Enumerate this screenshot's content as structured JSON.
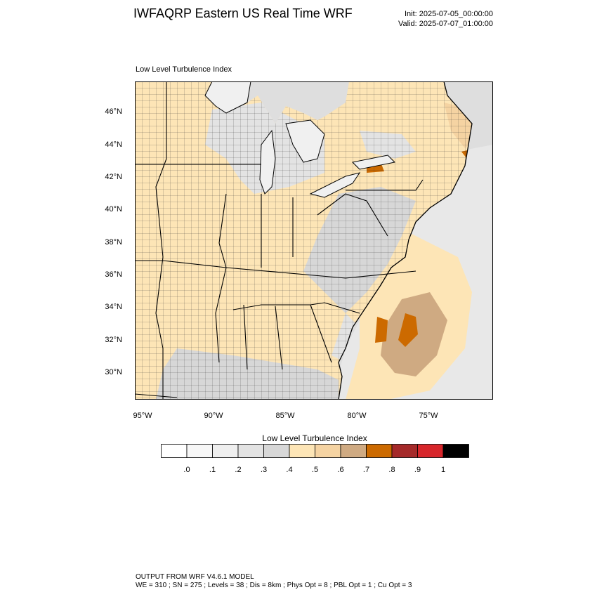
{
  "header": {
    "title": "IWFAQRP Eastern US Real Time WRF",
    "init": "Init: 2025-07-05_00:00:00",
    "valid": "Valid: 2025-07-07_01:00:00"
  },
  "panel": {
    "title": "Low Level Turbulence Index"
  },
  "map": {
    "lat_labels": [
      "46°N",
      "44°N",
      "42°N",
      "40°N",
      "38°N",
      "36°N",
      "34°N",
      "32°N",
      "30°N"
    ],
    "lon_labels": [
      "95°W",
      "90°W",
      "85°W",
      "80°W",
      "75°W"
    ]
  },
  "colorbar": {
    "title": "Low Level Turbulence Index",
    "colors": [
      "#ffffff",
      "#f7f7f7",
      "#efefef",
      "#e3e3e3",
      "#d7d7d7",
      "#fde5b6",
      "#f5d3a2",
      "#cfaa82",
      "#cc6a00",
      "#a52a2a",
      "#d7262b",
      "#000000"
    ],
    "labels": [
      ".0",
      ".1",
      ".2",
      ".3",
      ".4",
      ".5",
      ".6",
      ".7",
      ".8",
      ".9",
      "1"
    ]
  },
  "footer": {
    "line1": "OUTPUT FROM WRF V4.6.1 MODEL",
    "line2": "WE = 310 ; SN = 275 ; Levels = 38 ; Dis = 8km ; Phys Opt = 8 ; PBL Opt = 1 ; Cu Opt = 3"
  }
}
